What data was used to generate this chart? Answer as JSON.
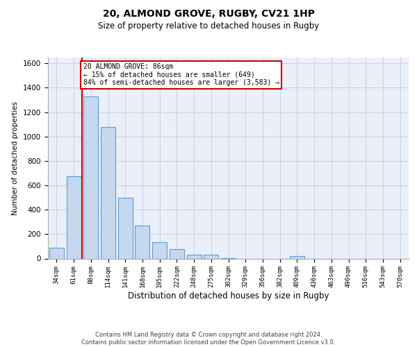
{
  "title_line1": "20, ALMOND GROVE, RUGBY, CV21 1HP",
  "title_line2": "Size of property relative to detached houses in Rugby",
  "xlabel": "Distribution of detached houses by size in Rugby",
  "ylabel": "Number of detached properties",
  "footer": "Contains HM Land Registry data © Crown copyright and database right 2024.\nContains public sector information licensed under the Open Government Licence v3.0.",
  "bin_labels": [
    "34sqm",
    "61sqm",
    "88sqm",
    "114sqm",
    "141sqm",
    "168sqm",
    "195sqm",
    "222sqm",
    "248sqm",
    "275sqm",
    "302sqm",
    "329sqm",
    "356sqm",
    "382sqm",
    "409sqm",
    "436sqm",
    "463sqm",
    "490sqm",
    "516sqm",
    "543sqm",
    "570sqm"
  ],
  "bar_heights": [
    90,
    675,
    1330,
    1080,
    500,
    270,
    135,
    75,
    30,
    30,
    5,
    0,
    0,
    0,
    20,
    0,
    0,
    0,
    0,
    0,
    0
  ],
  "bar_color": "#c5d8f0",
  "bar_edge_color": "#5b9bd5",
  "vline_x": 1.5,
  "vline_color": "#cc0000",
  "annotation_text": "20 ALMOND GROVE: 86sqm\n← 15% of detached houses are smaller (649)\n84% of semi-detached houses are larger (3,583) →",
  "annotation_box_facecolor": "#ffffff",
  "annotation_box_edgecolor": "#cc0000",
  "ylim": [
    0,
    1650
  ],
  "yticks": [
    0,
    200,
    400,
    600,
    800,
    1000,
    1200,
    1400,
    1600
  ],
  "grid_color": "#c8d4e8",
  "background_color": "#eaeff8",
  "title1_fontsize": 10,
  "title2_fontsize": 8.5,
  "ylabel_fontsize": 7.5,
  "xlabel_fontsize": 8.5,
  "tick_fontsize": 6.5,
  "footer_fontsize": 6.0
}
